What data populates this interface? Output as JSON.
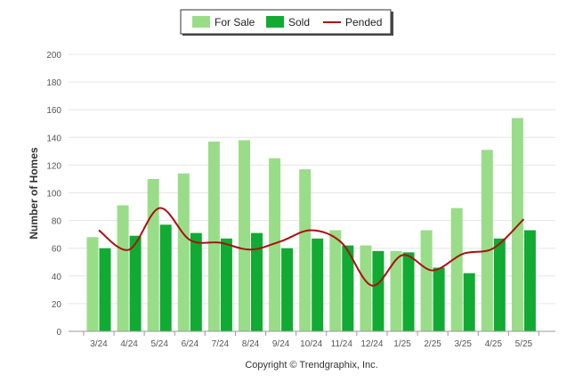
{
  "chart_data": {
    "type": "bar",
    "title": "",
    "xlabel": "",
    "ylabel": "Number of Homes",
    "ylim": [
      0,
      200
    ],
    "yticks": [
      0,
      20,
      40,
      60,
      80,
      100,
      120,
      140,
      160,
      180,
      200
    ],
    "categories": [
      "3/24",
      "4/24",
      "5/24",
      "6/24",
      "7/24",
      "8/24",
      "9/24",
      "10/24",
      "11/24",
      "12/24",
      "1/25",
      "2/25",
      "3/25",
      "4/25",
      "5/25"
    ],
    "series": [
      {
        "name": "For Sale",
        "kind": "bar",
        "color": "#99dd88",
        "values": [
          68,
          91,
          110,
          114,
          137,
          138,
          125,
          117,
          73,
          62,
          58,
          73,
          89,
          131,
          154
        ]
      },
      {
        "name": "Sold",
        "kind": "bar",
        "color": "#11aa33",
        "values": [
          60,
          69,
          77,
          71,
          67,
          71,
          60,
          67,
          62,
          58,
          57,
          46,
          42,
          67,
          73
        ]
      },
      {
        "name": "Pended",
        "kind": "line",
        "color": "#aa1111",
        "values": [
          73,
          59,
          89,
          66,
          64,
          59,
          65,
          73,
          64,
          33,
          55,
          44,
          56,
          60,
          81
        ]
      }
    ],
    "legend_position": "top-center",
    "grid": true
  },
  "footer": {
    "copyright": "Copyright © Trendgraphix, Inc."
  }
}
